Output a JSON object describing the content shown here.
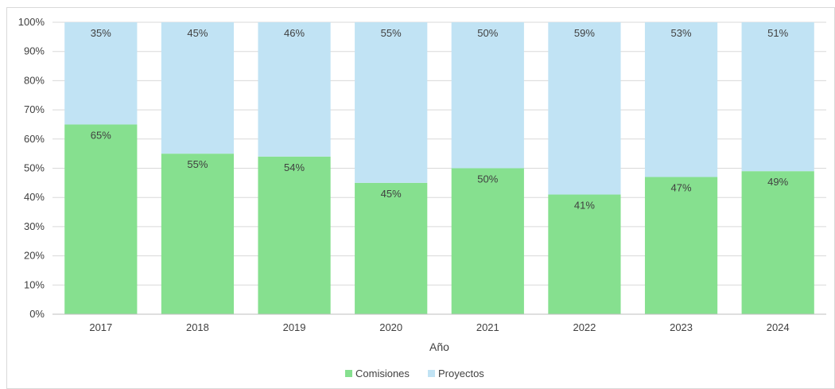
{
  "chart_data": {
    "type": "bar",
    "stacked": true,
    "percent": true,
    "title": "",
    "xlabel": "Año",
    "ylabel": "",
    "ylim": [
      0,
      100
    ],
    "yticks": [
      "0%",
      "10%",
      "20%",
      "30%",
      "40%",
      "50%",
      "60%",
      "70%",
      "80%",
      "90%",
      "100%"
    ],
    "categories": [
      "2017",
      "2018",
      "2019",
      "2020",
      "2021",
      "2022",
      "2023",
      "2024"
    ],
    "series": [
      {
        "name": "Comisiones",
        "color": "#86e08f",
        "values": [
          65,
          55,
          54,
          45,
          50,
          41,
          47,
          49
        ],
        "labels": [
          "65%",
          "55%",
          "54%",
          "45%",
          "50%",
          "41%",
          "47%",
          "49%"
        ]
      },
      {
        "name": "Proyectos",
        "color": "#c1e3f4",
        "values": [
          35,
          45,
          46,
          55,
          50,
          59,
          53,
          51
        ],
        "labels": [
          "35%",
          "45%",
          "46%",
          "55%",
          "50%",
          "59%",
          "53%",
          "51%"
        ]
      }
    ],
    "grid": true,
    "legend": "bottom"
  }
}
